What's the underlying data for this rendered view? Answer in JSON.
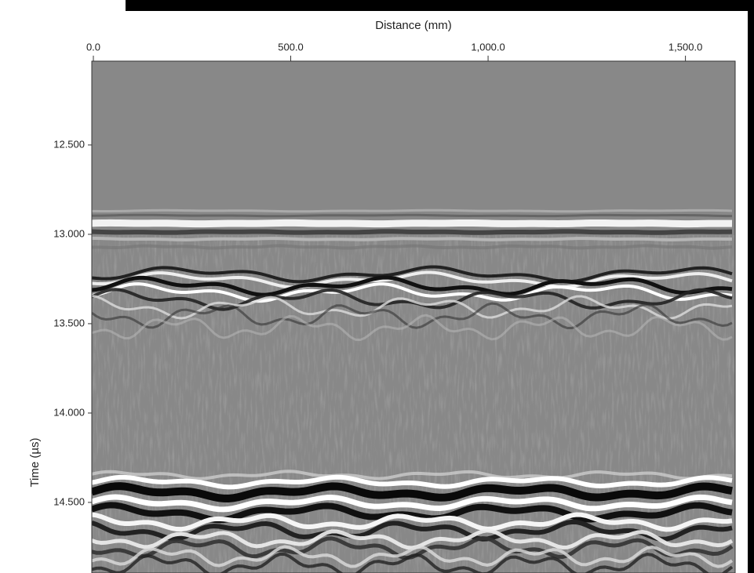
{
  "chart_data": {
    "type": "heatmap",
    "xlabel": "Distance (mm)",
    "ylabel": "Time (µs)",
    "x_axis": "top",
    "y_inverted": true,
    "xlim": [
      0,
      1626
    ],
    "xticks": [
      {
        "value": 0,
        "label": "0.0"
      },
      {
        "value": 500,
        "label": "500.0"
      },
      {
        "value": 1000,
        "label": "1,000.0"
      },
      {
        "value": 1500,
        "label": "1,500.0"
      }
    ],
    "ylim": [
      12.031,
      14.895
    ],
    "yticks": [
      {
        "value": 12.5,
        "label": "12.500"
      },
      {
        "value": 13,
        "label": "13.000"
      },
      {
        "value": 13.5,
        "label": "13.500"
      },
      {
        "value": 14,
        "label": "14.000"
      },
      {
        "value": 14.5,
        "label": "14.500"
      }
    ]
  }
}
